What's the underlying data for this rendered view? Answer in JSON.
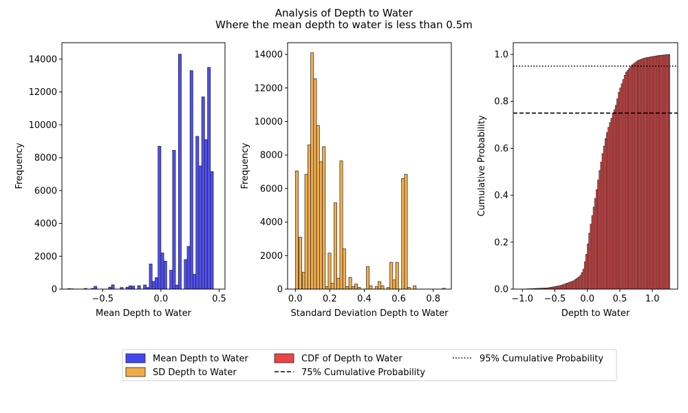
{
  "figure": {
    "title_line1": "Analysis of Depth to Water",
    "title_line2": "Where the mean depth to water is less than 0.5m"
  },
  "chart_data": [
    {
      "type": "bar",
      "subtype": "histogram",
      "xlabel": "Mean Depth to Water",
      "ylabel": "Frequency",
      "xlim": [
        -0.85,
        0.55
      ],
      "ylim": [
        0,
        15000
      ],
      "xticks": [
        -0.5,
        0.0,
        0.5
      ],
      "xtick_labels": [
        "−0.5",
        "0.0",
        "0.5"
      ],
      "yticks": [
        0,
        2000,
        4000,
        6000,
        8000,
        10000,
        12000,
        14000
      ],
      "ytick_labels": [
        "0",
        "2000",
        "4000",
        "6000",
        "8000",
        "10000",
        "12000",
        "14000"
      ],
      "color": "#4646f0",
      "bin_width": 0.025,
      "bins": [
        [
          -0.8,
          30
        ],
        [
          -0.775,
          20
        ],
        [
          -0.66,
          40
        ],
        [
          -0.6,
          40
        ],
        [
          -0.575,
          170
        ],
        [
          -0.45,
          120
        ],
        [
          -0.425,
          260
        ],
        [
          -0.35,
          100
        ],
        [
          -0.3,
          120
        ],
        [
          -0.275,
          200
        ],
        [
          -0.25,
          180
        ],
        [
          -0.2,
          210
        ],
        [
          -0.15,
          250
        ],
        [
          -0.125,
          100
        ],
        [
          -0.1,
          1530
        ],
        [
          -0.075,
          470
        ],
        [
          -0.05,
          700
        ],
        [
          -0.025,
          8700
        ],
        [
          0.0,
          2200
        ],
        [
          0.025,
          1700
        ],
        [
          0.075,
          1150
        ],
        [
          0.1,
          8450
        ],
        [
          0.125,
          250
        ],
        [
          0.15,
          14300
        ],
        [
          0.2,
          1800
        ],
        [
          0.225,
          2600
        ],
        [
          0.25,
          13300
        ],
        [
          0.275,
          900
        ],
        [
          0.3,
          9300
        ],
        [
          0.325,
          7500
        ],
        [
          0.35,
          11700
        ],
        [
          0.375,
          9100
        ],
        [
          0.4,
          13500
        ],
        [
          0.425,
          7150
        ]
      ]
    },
    {
      "type": "bar",
      "subtype": "histogram",
      "xlabel": "Standard Deviation Depth to Water",
      "ylabel": "Frequency",
      "xlim": [
        -0.045,
        0.905
      ],
      "ylim": [
        0,
        14700
      ],
      "xticks": [
        0.0,
        0.2,
        0.4,
        0.6,
        0.8
      ],
      "xtick_labels": [
        "0.0",
        "0.2",
        "0.4",
        "0.6",
        "0.8"
      ],
      "yticks": [
        0,
        2000,
        4000,
        6000,
        8000,
        10000,
        12000,
        14000
      ],
      "ytick_labels": [
        "0",
        "2000",
        "4000",
        "6000",
        "8000",
        "10000",
        "12000",
        "14000"
      ],
      "color": "#f0aa46",
      "bin_width": 0.017,
      "bins": [
        [
          0.0,
          7050
        ],
        [
          0.02,
          3100
        ],
        [
          0.04,
          1000
        ],
        [
          0.055,
          6850
        ],
        [
          0.072,
          8600
        ],
        [
          0.089,
          14100
        ],
        [
          0.106,
          12550
        ],
        [
          0.123,
          9750
        ],
        [
          0.14,
          7600
        ],
        [
          0.157,
          8500
        ],
        [
          0.174,
          150
        ],
        [
          0.19,
          2150
        ],
        [
          0.207,
          350
        ],
        [
          0.224,
          5150
        ],
        [
          0.241,
          650
        ],
        [
          0.258,
          7650
        ],
        [
          0.275,
          2400
        ],
        [
          0.292,
          150
        ],
        [
          0.31,
          700
        ],
        [
          0.327,
          150
        ],
        [
          0.344,
          300
        ],
        [
          0.361,
          100
        ],
        [
          0.412,
          1350
        ],
        [
          0.429,
          200
        ],
        [
          0.463,
          150
        ],
        [
          0.48,
          450
        ],
        [
          0.497,
          200
        ],
        [
          0.531,
          100
        ],
        [
          0.548,
          1600
        ],
        [
          0.565,
          550
        ],
        [
          0.582,
          1600
        ],
        [
          0.616,
          6600
        ],
        [
          0.633,
          6850
        ],
        [
          0.65,
          100
        ],
        [
          0.684,
          200
        ],
        [
          0.853,
          50
        ]
      ]
    },
    {
      "type": "bar",
      "subtype": "cumulative-histogram",
      "xlabel": "Depth to Water",
      "ylabel": "Cumulative Probability",
      "xlim": [
        -1.14,
        1.39
      ],
      "ylim": [
        0,
        1.05
      ],
      "xticks": [
        -1.0,
        -0.5,
        0.0,
        0.5,
        1.0
      ],
      "xtick_labels": [
        "−1.0",
        "−0.5",
        "0.0",
        "0.5",
        "1.0"
      ],
      "yticks": [
        0,
        0.2,
        0.4,
        0.6,
        0.8,
        1.0
      ],
      "ytick_labels": [
        "0.0",
        "0.2",
        "0.4",
        "0.6",
        "0.8",
        "1.0"
      ],
      "color": "#e84545",
      "x_range": [
        -1.0,
        1.27
      ],
      "bin_count": 100,
      "curve_points": [
        [
          -1.0,
          0.0
        ],
        [
          -0.6,
          0.005
        ],
        [
          -0.4,
          0.015
        ],
        [
          -0.2,
          0.035
        ],
        [
          -0.1,
          0.055
        ],
        [
          -0.05,
          0.08
        ],
        [
          0.0,
          0.15
        ],
        [
          0.05,
          0.25
        ],
        [
          0.1,
          0.33
        ],
        [
          0.15,
          0.41
        ],
        [
          0.2,
          0.5
        ],
        [
          0.25,
          0.58
        ],
        [
          0.3,
          0.65
        ],
        [
          0.35,
          0.7
        ],
        [
          0.4,
          0.74
        ],
        [
          0.45,
          0.78
        ],
        [
          0.5,
          0.84
        ],
        [
          0.55,
          0.88
        ],
        [
          0.6,
          0.92
        ],
        [
          0.7,
          0.955
        ],
        [
          0.8,
          0.975
        ],
        [
          0.9,
          0.985
        ],
        [
          1.0,
          0.99
        ],
        [
          1.1,
          0.995
        ],
        [
          1.27,
          1.0
        ]
      ],
      "hlines": [
        {
          "y": 0.75,
          "style": "dashed"
        },
        {
          "y": 0.95,
          "style": "dotted"
        }
      ]
    }
  ],
  "legend": {
    "placement": "bottom-center",
    "items": [
      {
        "label": "Mean Depth to Water",
        "kind": "patch",
        "color": "#4646f0"
      },
      {
        "label": "SD Depth to Water",
        "kind": "patch",
        "color": "#f0aa46"
      },
      {
        "label": "CDF of Depth to Water",
        "kind": "patch",
        "color": "#e84545"
      },
      {
        "label": "75% Cumulative Probability",
        "kind": "line",
        "style": "dashed"
      },
      {
        "label": "95% Cumulative Probability",
        "kind": "line",
        "style": "dotted"
      }
    ]
  }
}
